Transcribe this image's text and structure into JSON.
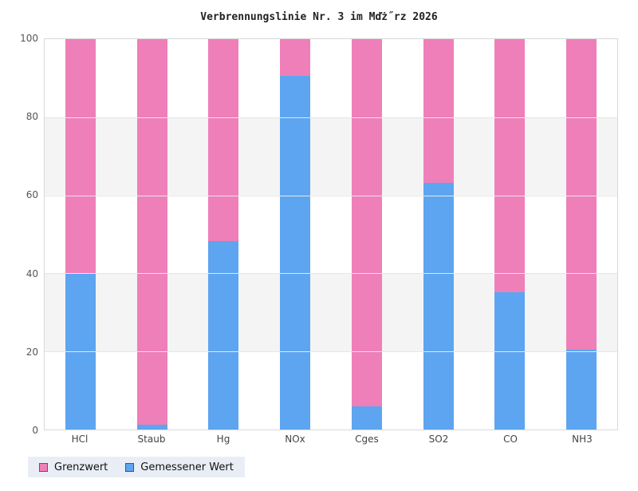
{
  "title": "Verbrennungslinie Nr. 3 im Mďż˝rz 2026",
  "colors": {
    "grenzwert_pink": "#ef7fb8",
    "gemessener_blue": "#5da5f0",
    "band_gray": "#f4f4f4",
    "plot_border": "#d8d8d8",
    "gridline": "#e6e6e6",
    "legend_background": "#e9eef6",
    "tick_text": "#555555"
  },
  "legend": {
    "items": [
      {
        "label": "Grenzwert",
        "color": "#ef7fb8"
      },
      {
        "label": "Gemessener Wert",
        "color": "#5da5f0"
      }
    ]
  },
  "chart_data": {
    "type": "bar",
    "stacked": true,
    "title": "Verbrennungslinie Nr. 3 im Mďż˝rz 2026",
    "categories": [
      "HCl",
      "Staub",
      "Hg",
      "NOx",
      "Cges",
      "SO2",
      "CO",
      "NH3"
    ],
    "series": [
      {
        "name": "Gemessener Wert",
        "color": "#5da5f0",
        "position": "bottom",
        "values": [
          39.8,
          1.2,
          48.2,
          90.6,
          5.9,
          63.2,
          35.2,
          20.4
        ]
      },
      {
        "name": "Grenzwert",
        "color": "#ef7fb8",
        "position": "top",
        "values": [
          60.2,
          98.8,
          51.8,
          9.4,
          94.1,
          36.8,
          64.8,
          79.6
        ]
      }
    ],
    "xlabel": "",
    "ylabel": "",
    "ylim": [
      0,
      100
    ],
    "yticks": [
      0,
      20,
      40,
      60,
      80,
      100
    ],
    "grid": "horizontal bands every 20 units (gray 20-40 and 60-80)",
    "legend_position": "bottom-left"
  }
}
